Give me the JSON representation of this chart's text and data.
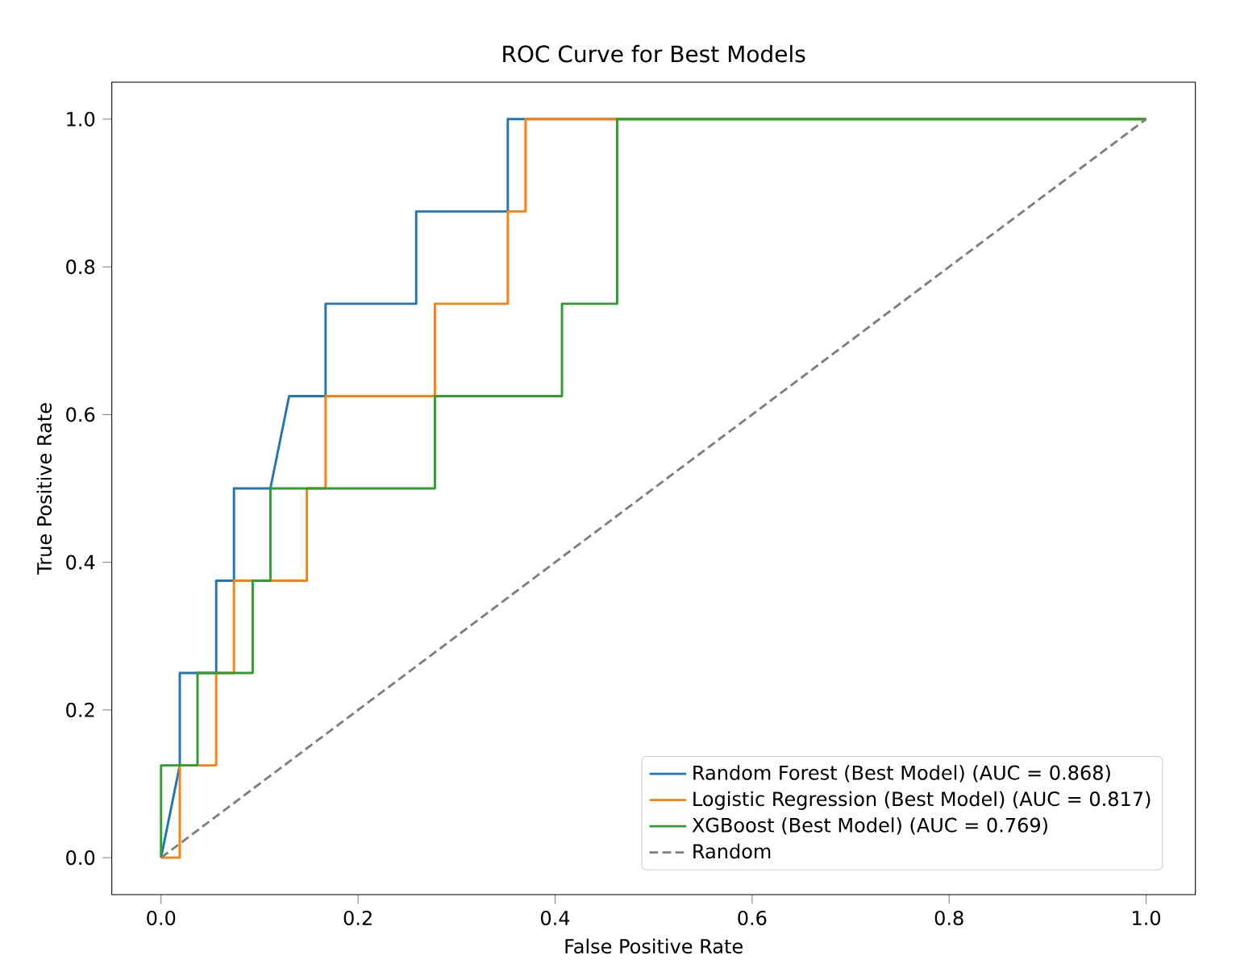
{
  "chart_data": {
    "type": "line",
    "title": "ROC Curve for Best Models",
    "xlabel": "False Positive Rate",
    "ylabel": "True Positive Rate",
    "xlim": [
      -0.05,
      1.05
    ],
    "ylim": [
      -0.05,
      1.05
    ],
    "xticks": [
      {
        "value": 0,
        "label": "0.0"
      },
      {
        "value": 0.2,
        "label": "0.2"
      },
      {
        "value": 0.4,
        "label": "0.4"
      },
      {
        "value": 0.6,
        "label": "0.6"
      },
      {
        "value": 0.8,
        "label": "0.8"
      },
      {
        "value": 1,
        "label": "1.0"
      }
    ],
    "yticks": [
      {
        "value": 0,
        "label": "0.0"
      },
      {
        "value": 0.2,
        "label": "0.2"
      },
      {
        "value": 0.4,
        "label": "0.4"
      },
      {
        "value": 0.6,
        "label": "0.6"
      },
      {
        "value": 0.8,
        "label": "0.8"
      },
      {
        "value": 1,
        "label": "1.0"
      }
    ],
    "grid": false,
    "legend": "bottom right",
    "marker": "none",
    "series": [
      {
        "name": "Random Forest (Best Model) (AUC = 0.868)",
        "color": "#1f77b4",
        "x": [
          0,
          0.019,
          0.019,
          0.056,
          0.056,
          0.074,
          0.074,
          0.111,
          0.13,
          0.167,
          0.167,
          0.259,
          0.259,
          0.352,
          0.352,
          1
        ],
        "values": [
          0,
          0.125,
          0.25,
          0.25,
          0.375,
          0.375,
          0.5,
          0.5,
          0.625,
          0.625,
          0.75,
          0.75,
          0.875,
          0.875,
          1,
          1
        ]
      },
      {
        "name": "Logistic Regression (Best Model) (AUC = 0.817)",
        "color": "#ff7f0e",
        "x": [
          0,
          0.019,
          0.019,
          0.056,
          0.056,
          0.074,
          0.074,
          0.148,
          0.148,
          0.167,
          0.167,
          0.278,
          0.278,
          0.352,
          0.352,
          0.37,
          0.37,
          1
        ],
        "values": [
          0,
          0,
          0.125,
          0.125,
          0.25,
          0.25,
          0.375,
          0.375,
          0.5,
          0.5,
          0.625,
          0.625,
          0.75,
          0.75,
          0.875,
          0.875,
          1,
          1
        ]
      },
      {
        "name": "XGBoost (Best Model) (AUC = 0.769)",
        "color": "#2ca02c",
        "x": [
          0,
          0,
          0.037,
          0.037,
          0.093,
          0.093,
          0.111,
          0.111,
          0.278,
          0.278,
          0.407,
          0.407,
          0.463,
          0.463,
          1
        ],
        "values": [
          0,
          0.125,
          0.125,
          0.25,
          0.25,
          0.375,
          0.375,
          0.5,
          0.5,
          0.625,
          0.625,
          0.75,
          0.75,
          1,
          1
        ]
      },
      {
        "name": "Random",
        "color": "#808080",
        "line_style": "dashed",
        "x": [
          0,
          1
        ],
        "values": [
          0,
          1
        ]
      }
    ]
  }
}
